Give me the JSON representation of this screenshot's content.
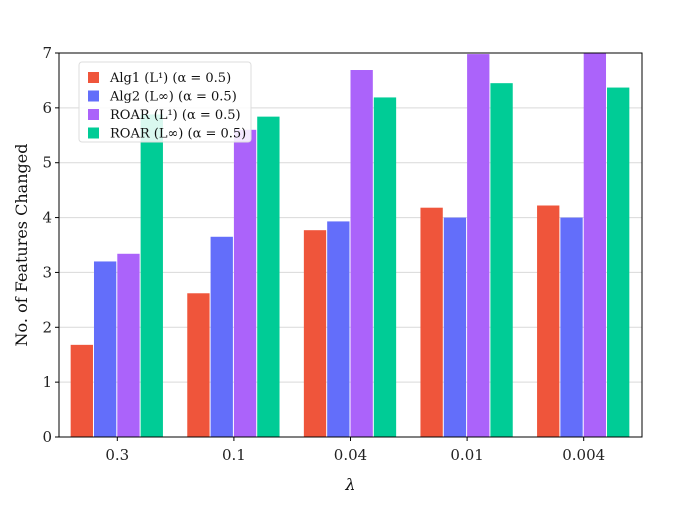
{
  "chart_data": {
    "type": "bar",
    "categories": [
      "0.3",
      "0.1",
      "0.04",
      "0.01",
      "0.004"
    ],
    "xlabel": "λ",
    "ylabel": "No. of Features Changed",
    "ylim": [
      0,
      7
    ],
    "yticks": [
      "0",
      "1",
      "2",
      "3",
      "4",
      "5",
      "6",
      "7"
    ],
    "grid": "y",
    "legend_position": "top-left",
    "series": [
      {
        "name": "Alg1 (L¹) (α = 0.5)",
        "color": "#EF553B",
        "values": [
          1.68,
          2.62,
          3.77,
          4.18,
          4.22
        ]
      },
      {
        "name": "Alg2 (L∞) (α = 0.5)",
        "color": "#636EFA",
        "values": [
          3.2,
          3.65,
          3.93,
          4.0,
          4.0
        ]
      },
      {
        "name": "ROAR (L¹) (α = 0.5)",
        "color": "#AB63FA",
        "values": [
          3.34,
          5.6,
          6.69,
          6.98,
          7.02
        ]
      },
      {
        "name": "ROAR (L∞) (α = 0.5)",
        "color": "#00CC96",
        "values": [
          5.88,
          5.84,
          6.19,
          6.45,
          6.37
        ]
      }
    ]
  }
}
